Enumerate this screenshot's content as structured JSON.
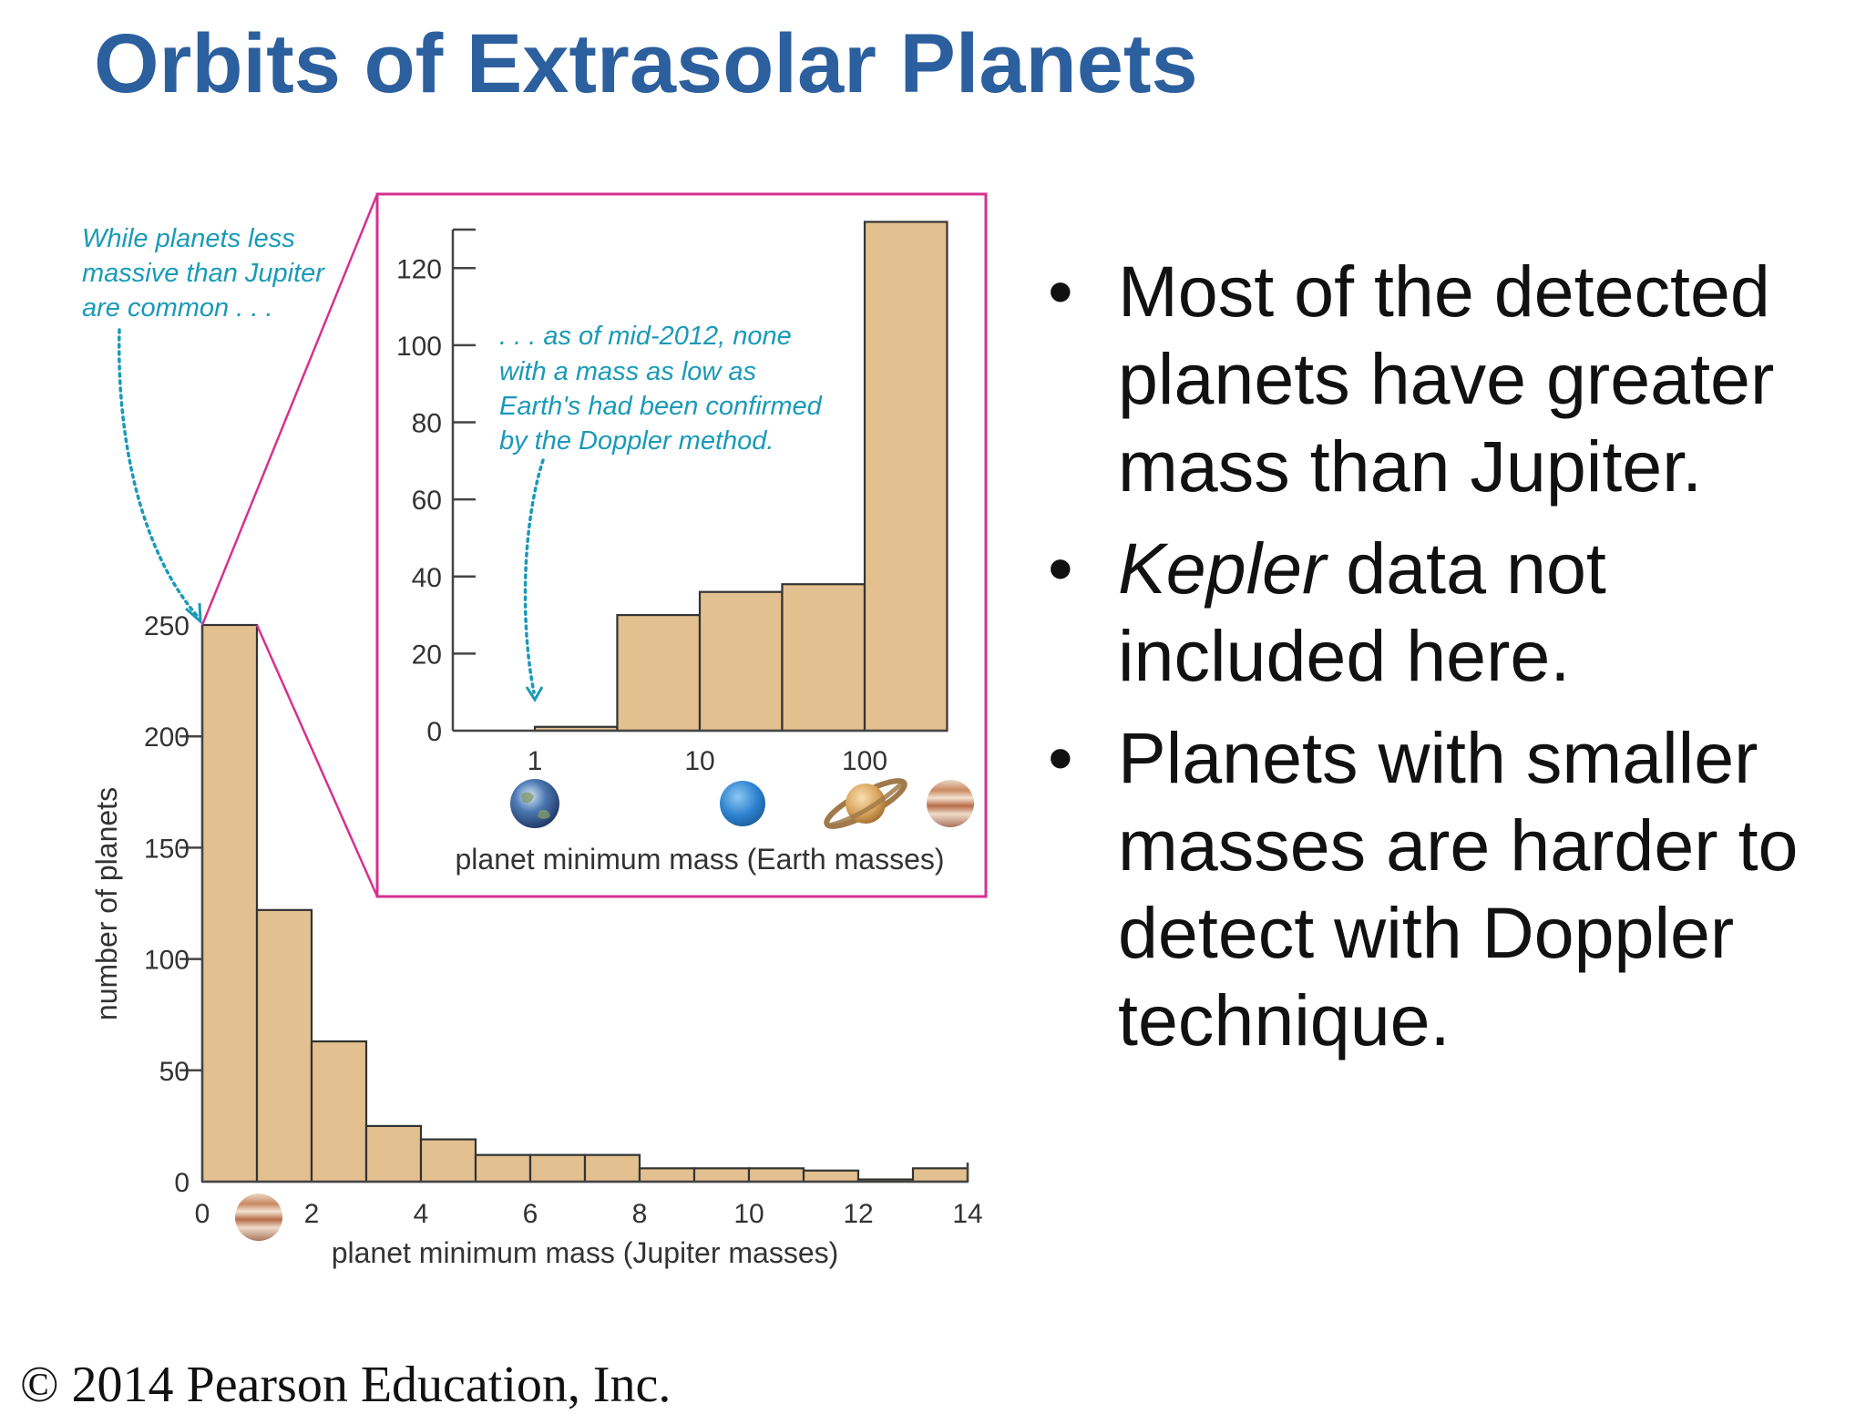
{
  "slide": {
    "title": "Orbits of Extrasolar Planets",
    "copyright": "© 2014 Pearson Education, Inc."
  },
  "bullets": [
    {
      "lead_italic": "",
      "text": "Most of the detected planets have greater mass than Jupiter."
    },
    {
      "lead_italic": "Kepler",
      "text": " data not included here."
    },
    {
      "lead_italic": "",
      "text": "Planets with smaller masses are harder to detect with Doppler technique."
    }
  ],
  "colors": {
    "bar_fill": "#e3c08f",
    "bar_stroke": "#333333",
    "inset_border": "#d6318f",
    "note_text": "#1a9ab8",
    "title": "#2c5f9e"
  },
  "icons": {
    "main_axis": [
      "jupiter-icon"
    ],
    "inset_axis": [
      "earth-icon",
      "neptune-icon",
      "saturn-icon",
      "jupiter-icon"
    ]
  },
  "notes": {
    "main": [
      "While planets less",
      "massive than Jupiter",
      "are common . . ."
    ],
    "inset": [
      ". . . as of mid-2012, none",
      "with a mass as low as",
      "Earth's had been confirmed",
      "by the Doppler method."
    ]
  },
  "chart_data": [
    {
      "type": "bar",
      "title": "",
      "xlabel": "planet minimum mass (Jupiter masses)",
      "ylabel": "number of planets",
      "xlim": [
        0,
        14
      ],
      "ylim": [
        0,
        250
      ],
      "x_ticks": [
        "0",
        "2",
        "4",
        "6",
        "8",
        "10",
        "12",
        "14"
      ],
      "y_ticks": [
        "0",
        "50",
        "100",
        "150",
        "200",
        "250"
      ],
      "bins": [
        [
          0,
          1
        ],
        [
          1,
          2
        ],
        [
          2,
          3
        ],
        [
          3,
          4
        ],
        [
          4,
          5
        ],
        [
          5,
          6
        ],
        [
          6,
          7
        ],
        [
          7,
          8
        ],
        [
          8,
          9
        ],
        [
          9,
          10
        ],
        [
          10,
          11
        ],
        [
          11,
          12
        ],
        [
          12,
          13
        ],
        [
          13,
          14
        ]
      ],
      "values": [
        250,
        122,
        63,
        25,
        19,
        12,
        12,
        12,
        6,
        6,
        6,
        5,
        1,
        6
      ],
      "grid": false
    },
    {
      "type": "bar",
      "title": "",
      "xlabel": "planet minimum mass (Earth masses)",
      "ylabel": "",
      "x_scale": "log",
      "ylim": [
        0,
        130
      ],
      "x_ticks": [
        "1",
        "10",
        "100"
      ],
      "y_ticks": [
        "0",
        "20",
        "40",
        "60",
        "80",
        "100",
        "120"
      ],
      "bin_edges": [
        1,
        3.16,
        10,
        31.6,
        100,
        316
      ],
      "values": [
        1,
        30,
        36,
        38,
        132
      ],
      "grid": false
    }
  ]
}
